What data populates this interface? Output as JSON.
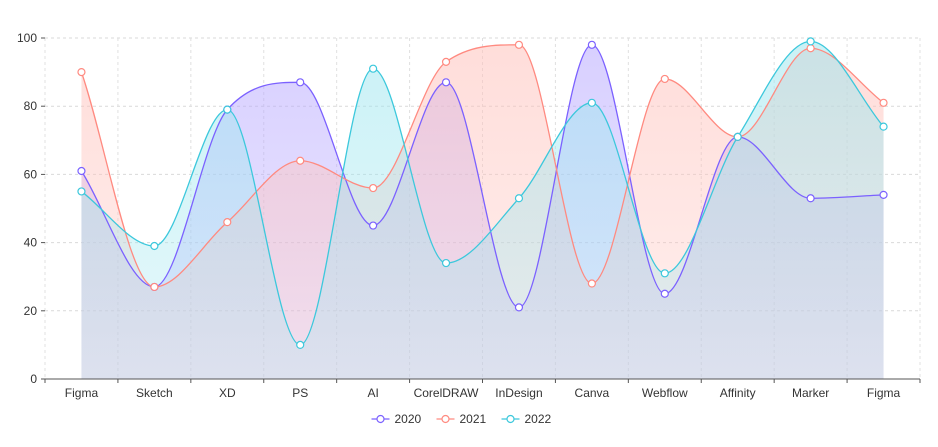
{
  "chart_data": {
    "type": "area",
    "categories": [
      "Figma",
      "Sketch",
      "XD",
      "PS",
      "AI",
      "CorelDRAW",
      "InDesign",
      "Canva",
      "Webflow",
      "Affinity",
      "Marker",
      "Figma"
    ],
    "series": [
      {
        "name": "2020",
        "color": "#7b61ff",
        "fill": "#b8a9ff",
        "values": [
          61,
          27,
          79,
          87,
          45,
          87,
          21,
          98,
          25,
          71,
          53,
          54
        ]
      },
      {
        "name": "2021",
        "color": "#ff8a80",
        "fill": "#ffc2bc",
        "values": [
          90,
          27,
          46,
          64,
          56,
          93,
          98,
          28,
          88,
          71,
          97,
          81
        ]
      },
      {
        "name": "2022",
        "color": "#3cc8dc",
        "fill": "#9fe6ef",
        "values": [
          55,
          39,
          79,
          10,
          91,
          34,
          53,
          81,
          31,
          71,
          99,
          74
        ]
      }
    ],
    "yticks": [
      "0",
      "20",
      "40",
      "60",
      "80",
      "100"
    ],
    "ylim": [
      0,
      100
    ],
    "grid": true,
    "legend_position": "bottom-center",
    "title": "",
    "xlabel": "",
    "ylabel": ""
  }
}
